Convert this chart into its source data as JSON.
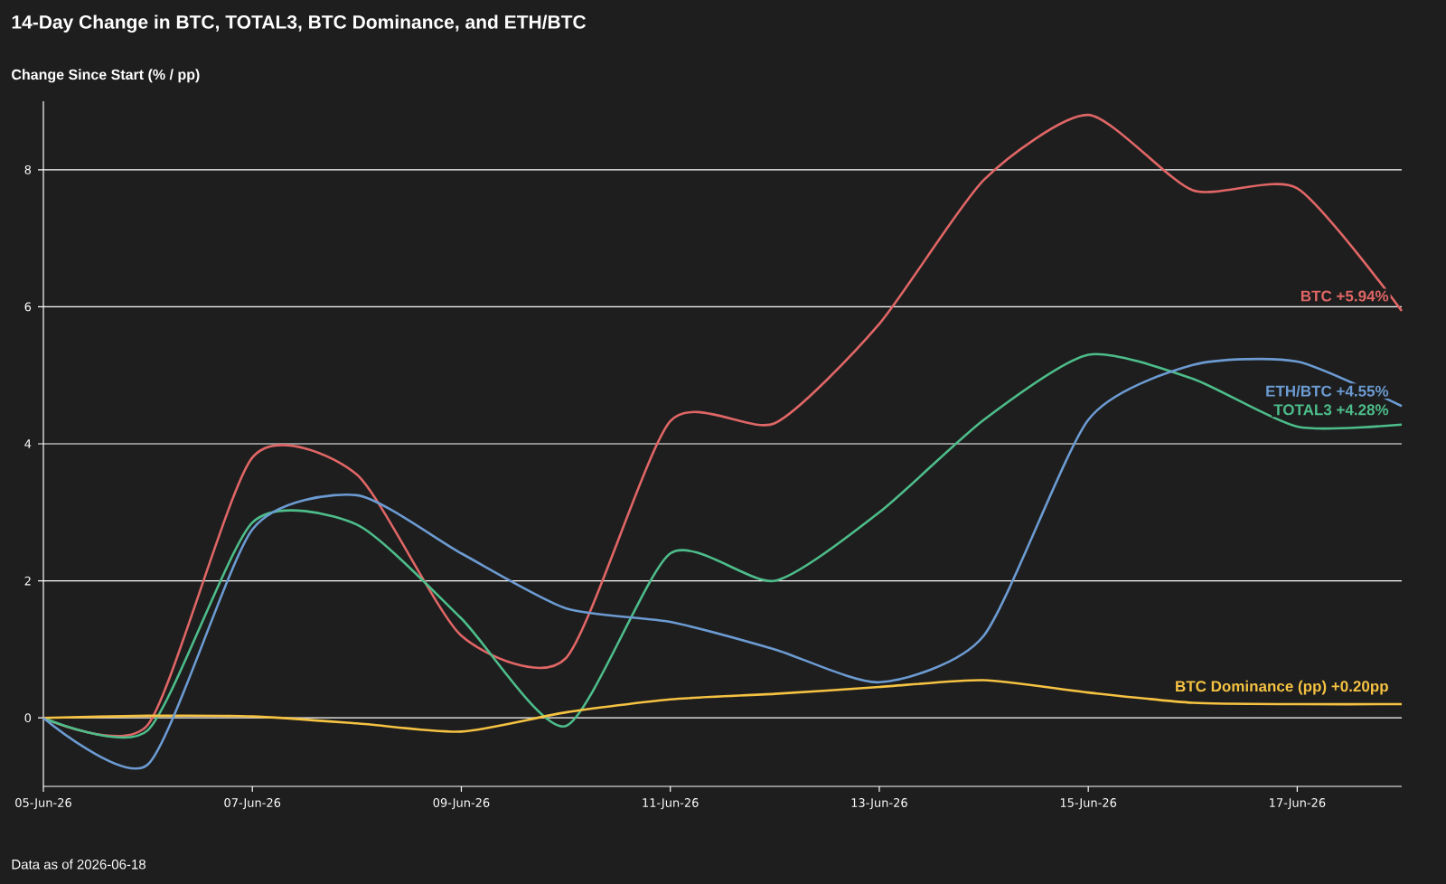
{
  "chart_data": {
    "type": "line",
    "title": "14-Day Change in BTC, TOTAL3, BTC Dominance, and ETH/BTC",
    "ylabel": "Change Since Start (% / pp)",
    "x": [
      "2026-06-05",
      "2026-06-06",
      "2026-06-07",
      "2026-06-08",
      "2026-06-09",
      "2026-06-10",
      "2026-06-11",
      "2026-06-12",
      "2026-06-13",
      "2026-06-14",
      "2026-06-15",
      "2026-06-16",
      "2026-06-17",
      "2026-06-18"
    ],
    "series": [
      {
        "name": "BTC",
        "color": "#e06666",
        "values": [
          0,
          -0.1,
          3.8,
          3.55,
          1.2,
          0.87,
          4.33,
          4.3,
          5.75,
          7.85,
          8.8,
          7.7,
          7.73,
          5.94
        ],
        "value_labels": [
          null,
          null,
          null,
          null,
          null,
          null,
          null,
          null,
          null,
          null,
          null,
          null,
          null,
          "+5.94%"
        ]
      },
      {
        "name": "TOTAL3",
        "color": "#4dbd8a",
        "values": [
          0,
          -0.18,
          2.85,
          2.82,
          1.45,
          -0.12,
          2.4,
          2.0,
          3.0,
          4.35,
          5.3,
          4.95,
          4.25,
          4.28
        ],
        "value_labels": [
          null,
          null,
          null,
          null,
          null,
          null,
          null,
          null,
          null,
          null,
          null,
          null,
          null,
          "+4.28%"
        ]
      },
      {
        "name": "BTC Dominance (pp)",
        "color": "#f5c242",
        "values": [
          0,
          0.03,
          0.02,
          -0.08,
          -0.2,
          0.08,
          0.27,
          0.35,
          0.45,
          0.55,
          0.37,
          0.22,
          0.2,
          0.2
        ],
        "value_labels": [
          null,
          null,
          null,
          null,
          null,
          null,
          null,
          null,
          null,
          null,
          null,
          null,
          null,
          "+0.20pp"
        ]
      },
      {
        "name": "ETH/BTC",
        "color": "#6c9bd2",
        "values": [
          0,
          -0.68,
          2.75,
          3.25,
          2.4,
          1.6,
          1.4,
          1.0,
          0.52,
          1.2,
          4.35,
          5.15,
          5.2,
          4.55
        ],
        "value_labels": [
          null,
          null,
          null,
          null,
          null,
          null,
          null,
          null,
          null,
          null,
          null,
          null,
          null,
          "+4.55%"
        ]
      }
    ],
    "xlim": [
      "2026-06-05",
      "2026-06-18"
    ],
    "xticks": [
      {
        "value": "2026-06-05",
        "label": "05-Jun-26"
      },
      {
        "value": "2026-06-07",
        "label": "07-Jun-26"
      },
      {
        "value": "2026-06-09",
        "label": "09-Jun-26"
      },
      {
        "value": "2026-06-11",
        "label": "11-Jun-26"
      },
      {
        "value": "2026-06-13",
        "label": "13-Jun-26"
      },
      {
        "value": "2026-06-15",
        "label": "15-Jun-26"
      },
      {
        "value": "2026-06-17",
        "label": "17-Jun-26"
      }
    ],
    "ylim": [
      -1,
      9
    ],
    "yticks": [
      0,
      2,
      4,
      6,
      8
    ],
    "grid": "y",
    "legend": false,
    "marker": "none",
    "line_style": "solid",
    "annotations": [
      "Data as of 2026-06-18"
    ]
  }
}
